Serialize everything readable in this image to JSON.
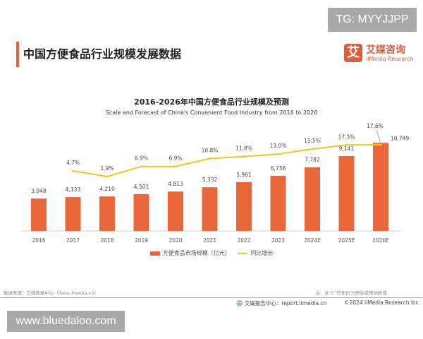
{
  "watermark_top": "TG: MYYJJPP",
  "watermark_bottom": "www.bluedaloo.com",
  "page_title": "中国方便食品行业规模发展数据",
  "logo": {
    "cn": "艾媒咨询",
    "en": "iiMedia Research",
    "mark": "艾"
  },
  "chart_data": {
    "type": "bar+line",
    "title": "2016-2026年中国方便食品行业规模及预测",
    "subtitle": "Scale and Forecast of China's Convenient Food Industry from 2016 to 2026",
    "categories": [
      "2016",
      "2017",
      "2018",
      "2019",
      "2020",
      "2021",
      "2022",
      "2023",
      "2024E",
      "2025E",
      "2026E"
    ],
    "series": [
      {
        "name": "方便食品市场规模（亿元）",
        "type": "bar",
        "color": "#e8683b",
        "values": [
          3948,
          4133,
          4210,
          4501,
          4813,
          5332,
          5961,
          6736,
          7782,
          9141,
          10749
        ],
        "labels": [
          "3,948",
          "4,133",
          "4,210",
          "4,501",
          "4,813",
          "5,332",
          "5,961",
          "6,736",
          "7,782",
          "9,141",
          "10,749"
        ]
      },
      {
        "name": "同比增长",
        "type": "line",
        "color": "#e8c829",
        "values": [
          null,
          4.7,
          1.9,
          6.9,
          6.9,
          10.8,
          11.8,
          13.0,
          15.5,
          17.5,
          17.6
        ],
        "labels": [
          "",
          "4.7%",
          "1.9%",
          "6.9%",
          "6.9%",
          "10.8%",
          "11.8%",
          "13.0%",
          "15.5%",
          "17.5%",
          "17.6%"
        ]
      }
    ],
    "legend": "bottom",
    "grid": false
  },
  "footer": {
    "source": "数据来源：艾媒数据中心（data.iimedia.cn）",
    "note": "注：含“E”的年份为预估或预测数值",
    "report": "艾媒报告中心：report.iimedia.cn",
    "copyright": "©2024  iiMedia Research Inc"
  }
}
